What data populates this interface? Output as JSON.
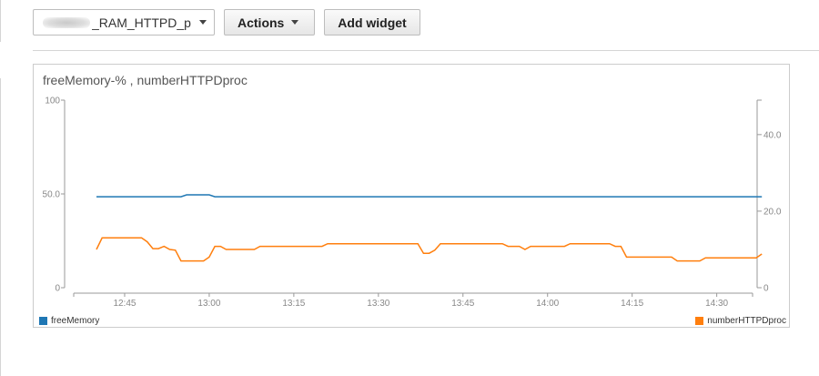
{
  "toolbar": {
    "dashboard_select_value": "_RAM_HTTPD_p…",
    "actions_label": "Actions",
    "add_widget_label": "Add widget"
  },
  "widget": {
    "title": "freeMemory-% , numberHTTPDproc"
  },
  "chart_data": {
    "type": "line",
    "title": "freeMemory-% , numberHTTPDproc",
    "x_ticks": [
      "12:45",
      "13:00",
      "13:15",
      "13:30",
      "13:45",
      "14:00",
      "14:15",
      "14:30"
    ],
    "x_unit": "HH:MM",
    "left_axis": {
      "ticks": [
        "100",
        "50.0",
        "0"
      ],
      "ylim": [
        0,
        100
      ]
    },
    "right_axis": {
      "ticks": [
        "40.0",
        "20.0",
        "0"
      ],
      "ylim": [
        0,
        49
      ]
    },
    "legend": {
      "placement": "bottom"
    },
    "grid": false,
    "series": [
      {
        "name": "freeMemory",
        "axis": "left",
        "color": "#1f77b4",
        "points": [
          [
            "12:40",
            48.5
          ],
          [
            "12:55",
            48.5
          ],
          [
            "12:56",
            49.5
          ],
          [
            "13:00",
            49.5
          ],
          [
            "13:01",
            48.5
          ],
          [
            "14:38",
            48.5
          ]
        ]
      },
      {
        "name": "numberHTTPDproc",
        "axis": "right",
        "color": "#ff7f0e",
        "points": [
          [
            "12:40",
            10
          ],
          [
            "12:41",
            13
          ],
          [
            "12:48",
            13
          ],
          [
            "12:49",
            12
          ],
          [
            "12:50",
            10.2
          ],
          [
            "12:51",
            10.2
          ],
          [
            "12:52",
            10.8
          ],
          [
            "12:53",
            10
          ],
          [
            "12:54",
            9.8
          ],
          [
            "12:55",
            7
          ],
          [
            "12:59",
            7
          ],
          [
            "13:00",
            8
          ],
          [
            "13:01",
            10.8
          ],
          [
            "13:02",
            10.8
          ],
          [
            "13:03",
            10
          ],
          [
            "13:08",
            10
          ],
          [
            "13:09",
            10.8
          ],
          [
            "13:20",
            10.8
          ],
          [
            "13:21",
            11.5
          ],
          [
            "13:37",
            11.5
          ],
          [
            "13:38",
            9
          ],
          [
            "13:39",
            9
          ],
          [
            "13:40",
            9.8
          ],
          [
            "13:41",
            11.5
          ],
          [
            "13:52",
            11.5
          ],
          [
            "13:53",
            10.8
          ],
          [
            "13:55",
            10.8
          ],
          [
            "13:56",
            10
          ],
          [
            "13:57",
            10.8
          ],
          [
            "14:03",
            10.8
          ],
          [
            "14:04",
            11.5
          ],
          [
            "14:11",
            11.5
          ],
          [
            "14:12",
            10.8
          ],
          [
            "14:13",
            10.8
          ],
          [
            "14:14",
            8
          ],
          [
            "14:22",
            8
          ],
          [
            "14:23",
            7
          ],
          [
            "14:27",
            7
          ],
          [
            "14:28",
            7.8
          ],
          [
            "14:37",
            7.8
          ],
          [
            "14:38",
            8.8
          ]
        ]
      }
    ]
  }
}
